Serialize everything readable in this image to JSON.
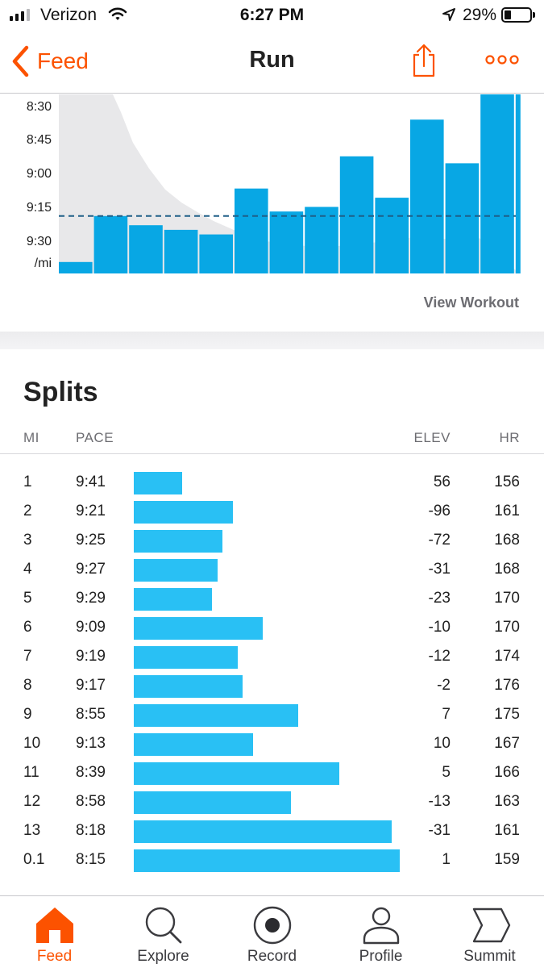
{
  "status_bar": {
    "carrier": "Verizon",
    "time": "6:27 PM",
    "battery_percent": "29%",
    "icons": [
      "signal-icon",
      "wifi-icon",
      "location-arrow-icon",
      "battery-icon"
    ]
  },
  "nav": {
    "back_label": "Feed",
    "title": "Run",
    "icons": [
      "chevron-left-icon",
      "share-icon",
      "more-icon"
    ],
    "accent_color": "#fc5200"
  },
  "chart_data": {
    "type": "bar",
    "y_tick_labels": [
      "8:30",
      "8:45",
      "9:00",
      "9:15",
      "9:30",
      "/mi"
    ],
    "y_axis": "pace per mile (faster at top)",
    "ylim_seconds_per_mi": [
      508,
      586
    ],
    "average_pace_seconds": 561,
    "bar_color": "#00a4e3",
    "bars_seconds_per_mi": [
      581,
      561,
      565,
      567,
      569,
      549,
      559,
      557,
      535,
      553,
      519,
      538,
      498,
      495
    ],
    "elevation_profile_color": "#e8e8ea"
  },
  "chart": {
    "view_workout_label": "View Workout"
  },
  "splits": {
    "title": "Splits",
    "headers": {
      "mi": "MI",
      "pace": "PACE",
      "elev": "ELEV",
      "hr": "HR"
    },
    "bar_color": "#29c0f4",
    "rows": [
      {
        "mi": "1",
        "pace": "9:41",
        "pace_seconds": 581,
        "elev": "56",
        "hr": "156"
      },
      {
        "mi": "2",
        "pace": "9:21",
        "pace_seconds": 561,
        "elev": "-96",
        "hr": "161"
      },
      {
        "mi": "3",
        "pace": "9:25",
        "pace_seconds": 565,
        "elev": "-72",
        "hr": "168"
      },
      {
        "mi": "4",
        "pace": "9:27",
        "pace_seconds": 567,
        "elev": "-31",
        "hr": "168"
      },
      {
        "mi": "5",
        "pace": "9:29",
        "pace_seconds": 569,
        "elev": "-23",
        "hr": "170"
      },
      {
        "mi": "6",
        "pace": "9:09",
        "pace_seconds": 549,
        "elev": "-10",
        "hr": "170"
      },
      {
        "mi": "7",
        "pace": "9:19",
        "pace_seconds": 559,
        "elev": "-12",
        "hr": "174"
      },
      {
        "mi": "8",
        "pace": "9:17",
        "pace_seconds": 557,
        "elev": "-2",
        "hr": "176"
      },
      {
        "mi": "9",
        "pace": "8:55",
        "pace_seconds": 535,
        "elev": "7",
        "hr": "175"
      },
      {
        "mi": "10",
        "pace": "9:13",
        "pace_seconds": 553,
        "elev": "10",
        "hr": "167"
      },
      {
        "mi": "11",
        "pace": "8:39",
        "pace_seconds": 519,
        "elev": "5",
        "hr": "166"
      },
      {
        "mi": "12",
        "pace": "8:58",
        "pace_seconds": 538,
        "elev": "-13",
        "hr": "163"
      },
      {
        "mi": "13",
        "pace": "8:18",
        "pace_seconds": 498,
        "elev": "-31",
        "hr": "161"
      },
      {
        "mi": "0.1",
        "pace": "8:15",
        "pace_seconds": 495,
        "elev": "1",
        "hr": "159"
      }
    ]
  },
  "tab_bar": {
    "active": "feed",
    "tabs": [
      {
        "id": "feed",
        "label": "Feed",
        "icon": "home-icon"
      },
      {
        "id": "explore",
        "label": "Explore",
        "icon": "search-icon"
      },
      {
        "id": "record",
        "label": "Record",
        "icon": "record-icon"
      },
      {
        "id": "profile",
        "label": "Profile",
        "icon": "profile-icon"
      },
      {
        "id": "summit",
        "label": "Summit",
        "icon": "summit-icon"
      }
    ]
  }
}
